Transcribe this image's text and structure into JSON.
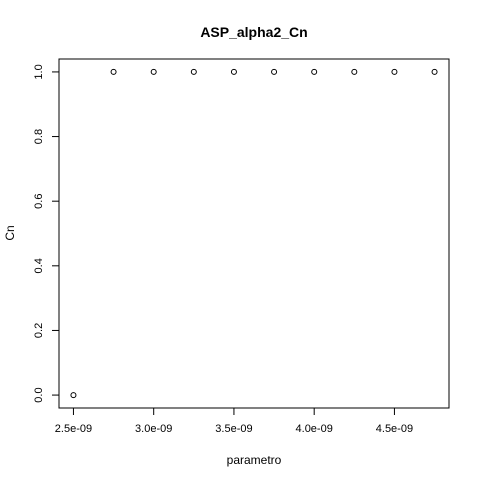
{
  "chart_data": {
    "type": "scatter",
    "title": "ASP_alpha2_Cn",
    "xlabel": "parametro",
    "ylabel": "Cn",
    "x": [
      2.5e-09,
      2.75e-09,
      3e-09,
      3.25e-09,
      3.5e-09,
      3.75e-09,
      4e-09,
      4.25e-09,
      4.5e-09,
      4.75e-09
    ],
    "y": [
      0,
      1,
      1,
      1,
      1,
      1,
      1,
      1,
      1,
      1
    ],
    "xlim": [
      2.41e-09,
      4.84e-09
    ],
    "ylim": [
      -0.04,
      1.04
    ],
    "xticks": [
      2.5e-09,
      3e-09,
      3.5e-09,
      4e-09,
      4.5e-09
    ],
    "xtick_labels": [
      "2.5e-09",
      "3.0e-09",
      "3.5e-09",
      "4.0e-09",
      "4.5e-09"
    ],
    "yticks": [
      0,
      0.2,
      0.4,
      0.6,
      0.8,
      1.0
    ],
    "ytick_labels": [
      "0.0",
      "0.2",
      "0.4",
      "0.6",
      "0.8",
      "1.0"
    ],
    "grid": false,
    "marker": "open-circle",
    "colors": {
      "axis": "#000000",
      "marker": "#000000",
      "background": "#ffffff"
    }
  }
}
